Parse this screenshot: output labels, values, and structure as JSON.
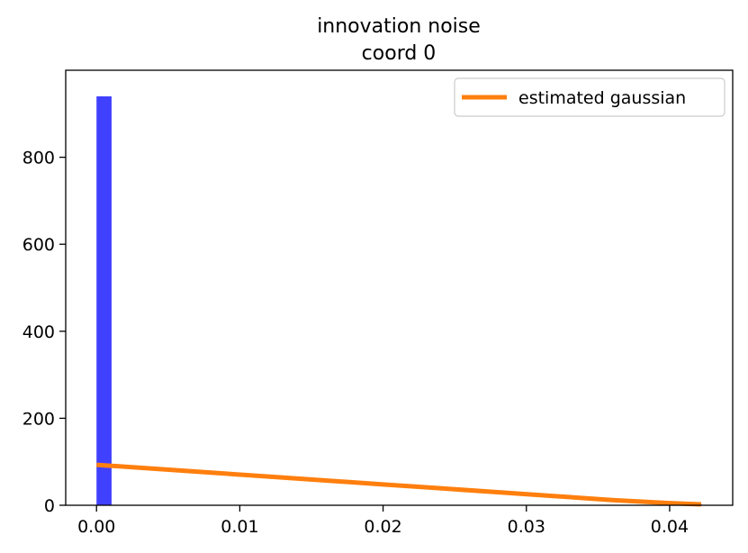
{
  "chart_data": {
    "type": "bar",
    "title": "innovation noise",
    "subtitle": "coord 0",
    "xlabel": "",
    "ylabel": "",
    "xlim": [
      -0.00215,
      0.0444
    ],
    "ylim": [
      0,
      1000
    ],
    "xticks": [
      "0.00",
      "0.01",
      "0.02",
      "0.03",
      "0.04"
    ],
    "xtick_values": [
      0.0,
      0.01,
      0.02,
      0.03,
      0.04
    ],
    "yticks": [
      "0",
      "200",
      "400",
      "600",
      "800"
    ],
    "ytick_values": [
      0,
      200,
      400,
      600,
      800
    ],
    "histogram": {
      "name": "histogram",
      "color": "#4040ff",
      "bins": [
        {
          "x0": 0.0,
          "x1": 0.00105,
          "count": 940
        },
        {
          "x0": 0.0412,
          "x1": 0.04225,
          "count": 2
        }
      ]
    },
    "line": {
      "name": "estimated gaussian",
      "color": "#ff7f0e",
      "x": [
        0.0,
        0.004,
        0.008,
        0.012,
        0.016,
        0.02,
        0.024,
        0.028,
        0.032,
        0.036,
        0.04,
        0.0422
      ],
      "y": [
        93,
        84,
        75,
        66,
        57,
        48,
        39,
        30,
        21,
        12,
        5,
        2
      ]
    },
    "legend": {
      "position": "top-right",
      "entries": [
        "estimated gaussian"
      ]
    }
  }
}
